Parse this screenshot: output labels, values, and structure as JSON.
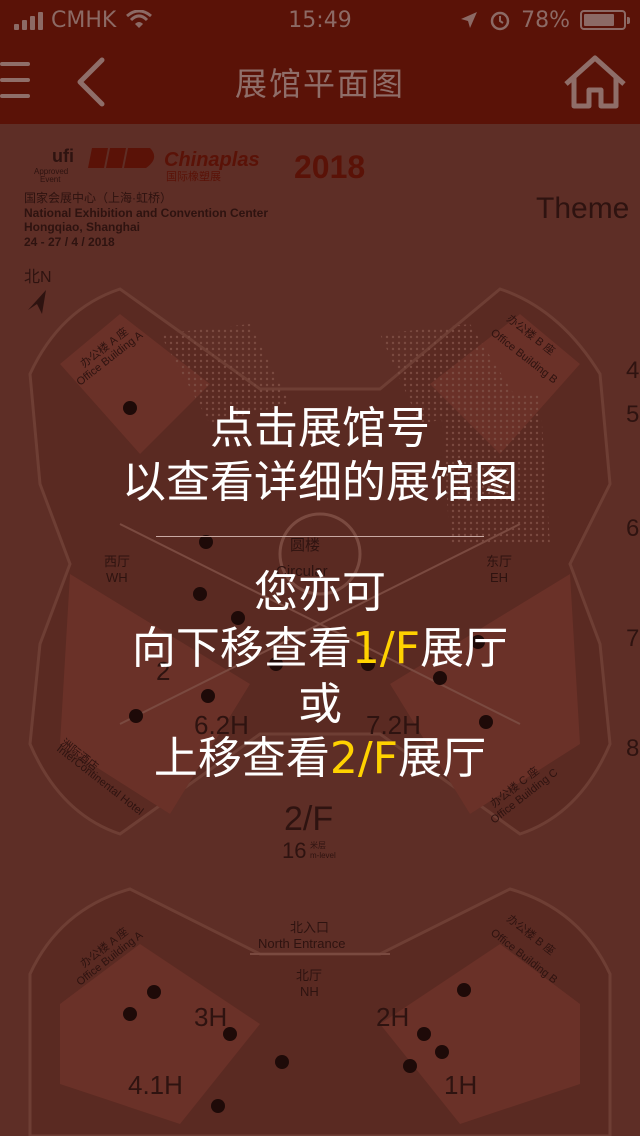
{
  "status_bar": {
    "carrier": "CMHK",
    "time": "15:49",
    "battery": "78%"
  },
  "nav_bar": {
    "title": "展馆平面图"
  },
  "header": {
    "ufi_label": "ufi",
    "ufi_sub1": "Approved",
    "ufi_sub2": "Event",
    "brand": "Chinaplas",
    "brand_cn": "国际橡塑展",
    "year": "2018",
    "venue_cn": "国家会展中心（上海·虹桥）",
    "venue_en": "National Exhibition and Convention Center",
    "city": "Hongqiao, Shanghai",
    "dates": "24 - 27 / 4 / 2018",
    "theme": "Theme",
    "north": "北N"
  },
  "map": {
    "office_a": "办公楼 A 座",
    "office_a_en": "Office Building A",
    "office_b": "办公楼 B 座",
    "office_b_en": "Office Building B",
    "office_c": "办公楼 C 座",
    "office_c_en": "Office Building C",
    "hotel_cn": "洲际酒店",
    "hotel_en": "InterContinental Hotel",
    "west_cn": "西厅",
    "west_en": "WH",
    "east_cn": "东厅",
    "east_en": "EH",
    "circular_cn": "圆楼",
    "circular_en": "Circular",
    "hall_62": "6.2H",
    "hall_72": "7.2H",
    "floor": "2/F",
    "level_num": "16",
    "level_unit_cn": "米层",
    "level_unit_en": "m-level",
    "north_entrance_cn": "北入口",
    "north_entrance_en": "North Entrance",
    "nh_cn": "北厅",
    "nh_en": "NH",
    "hall_3": "3H",
    "hall_2": "2H",
    "hall_41": "4.1H",
    "hall_1": "1H",
    "hall_2_partial": "2",
    "side_numbers": [
      "4",
      "5",
      "6",
      "7",
      "8"
    ]
  },
  "overlay": {
    "line1": "点击展馆号",
    "line2": "以查看详细的展馆图",
    "line3": "您亦可",
    "line4_pre": "向下移查看",
    "line4_hl": "1/F",
    "line4_post": "展厅",
    "line5": "或",
    "line6_pre": "上移查看",
    "line6_hl": "2/F",
    "line6_post": "展厅"
  }
}
